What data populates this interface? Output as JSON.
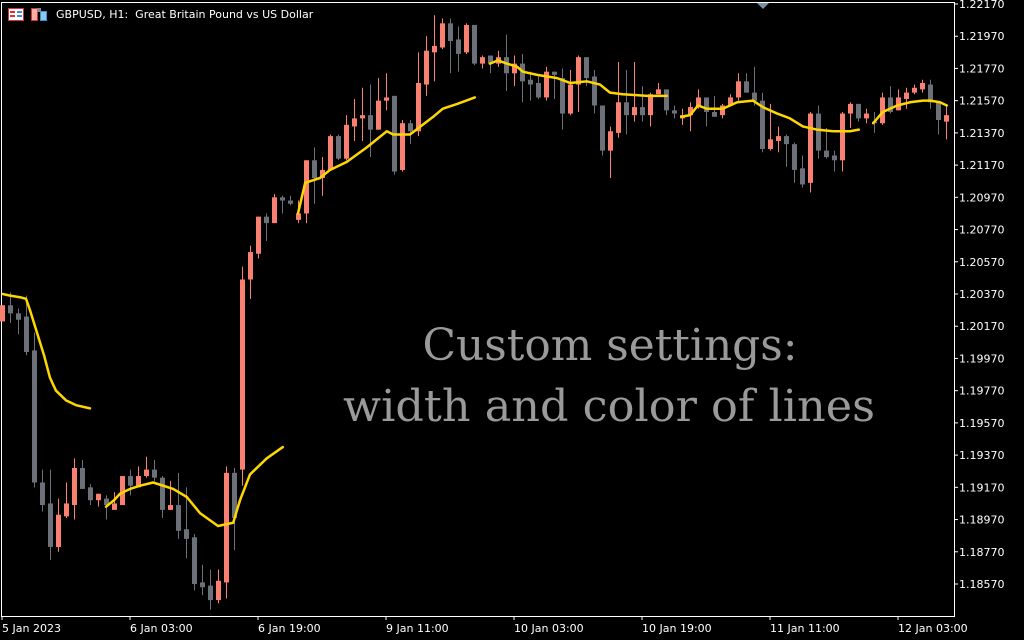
{
  "header": {
    "title": "GBPUSD, H1:  Great Britain Pound vs US Dollar",
    "icons": [
      "chart-list-icon",
      "one-click-trading-icon"
    ]
  },
  "overlay_text": {
    "line1": "Custom settings:",
    "line2": "width and color of lines",
    "color": "#9a9a9a"
  },
  "colors": {
    "background": "#000000",
    "bull": "#fa8072",
    "bear": "#6b7079",
    "ma_line": "#ffd700",
    "axis": "#ffffff",
    "marker": "#7a90a3"
  },
  "chart_data": {
    "type": "candlestick",
    "symbol": "GBPUSD",
    "timeframe": "H1",
    "ylim": [
      1.1845,
      1.2217
    ],
    "y_ticks": [
      "1.22170",
      "1.21970",
      "1.21770",
      "1.21570",
      "1.21370",
      "1.21170",
      "1.20970",
      "1.20770",
      "1.20570",
      "1.20370",
      "1.20170",
      "1.19970",
      "1.19770",
      "1.19570",
      "1.19370",
      "1.19170",
      "1.18970",
      "1.18770",
      "1.18570"
    ],
    "x_ticks": [
      {
        "bar": 0,
        "label": "5 Jan 2023"
      },
      {
        "bar": 16,
        "label": "6 Jan 03:00"
      },
      {
        "bar": 32,
        "label": "6 Jan 19:00"
      },
      {
        "bar": 48,
        "label": "9 Jan 11:00"
      },
      {
        "bar": 64,
        "label": "10 Jan 03:00"
      },
      {
        "bar": 80,
        "label": "10 Jan 19:00"
      },
      {
        "bar": 96,
        "label": "11 Jan 11:00"
      },
      {
        "bar": 112,
        "label": "12 Jan 03:00"
      }
    ],
    "candles_ohlc": [
      [
        1.202,
        1.203,
        1.202,
        1.203
      ],
      [
        1.203,
        1.2038,
        1.2019,
        1.2025
      ],
      [
        1.2025,
        1.2028,
        1.2012,
        1.2021
      ],
      [
        1.2023,
        1.2036,
        1.1999,
        1.2001
      ],
      [
        1.2002,
        1.2013,
        1.1917,
        1.192
      ],
      [
        1.192,
        1.1928,
        1.1902,
        1.1906
      ],
      [
        1.1907,
        1.1928,
        1.1872,
        1.188
      ],
      [
        1.188,
        1.191,
        1.1877,
        1.19
      ],
      [
        1.1899,
        1.192,
        1.1898,
        1.1907
      ],
      [
        1.1906,
        1.1935,
        1.1897,
        1.1929
      ],
      [
        1.1929,
        1.1934,
        1.1916,
        1.1916
      ],
      [
        1.1917,
        1.1919,
        1.1906,
        1.1909
      ],
      [
        1.1909,
        1.1913,
        1.1905,
        1.1913
      ],
      [
        1.191,
        1.1912,
        1.1897,
        1.1906
      ],
      [
        1.1903,
        1.1914,
        1.1903,
        1.1907
      ],
      [
        1.1906,
        1.1924,
        1.1906,
        1.1924
      ],
      [
        1.1924,
        1.1928,
        1.1912,
        1.1918
      ],
      [
        1.1917,
        1.193,
        1.1917,
        1.1924
      ],
      [
        1.1924,
        1.1936,
        1.1923,
        1.1928
      ],
      [
        1.1928,
        1.1934,
        1.1921,
        1.1923
      ],
      [
        1.1923,
        1.1924,
        1.1898,
        1.1903
      ],
      [
        1.1903,
        1.1921,
        1.1903,
        1.1906
      ],
      [
        1.1906,
        1.1926,
        1.1885,
        1.189
      ],
      [
        1.1891,
        1.1917,
        1.1873,
        1.1885
      ],
      [
        1.1886,
        1.1888,
        1.1853,
        1.1857
      ],
      [
        1.1858,
        1.1869,
        1.185,
        1.1855
      ],
      [
        1.1856,
        1.1866,
        1.1841,
        1.1847
      ],
      [
        1.1847,
        1.1866,
        1.1845,
        1.1859
      ],
      [
        1.1858,
        1.193,
        1.1848,
        1.1926
      ],
      [
        1.1926,
        1.1929,
        1.1878,
        1.1898
      ],
      [
        1.1928,
        1.2054,
        1.1918,
        1.2046
      ],
      [
        1.2046,
        1.2067,
        1.2034,
        1.2063
      ],
      [
        1.2062,
        1.2085,
        1.2059,
        1.2085
      ],
      [
        1.2085,
        1.2087,
        1.207,
        1.2081
      ],
      [
        1.2081,
        1.2099,
        1.2081,
        1.2097
      ],
      [
        1.2097,
        1.2098,
        1.2087,
        1.2095
      ],
      [
        1.2095,
        1.2098,
        1.2092,
        1.2093
      ],
      [
        1.2083,
        1.2095,
        1.2081,
        1.2087
      ],
      [
        1.2087,
        1.212,
        1.2081,
        1.212
      ],
      [
        1.212,
        1.2128,
        1.2093,
        1.2109
      ],
      [
        1.2109,
        1.2122,
        1.2098,
        1.2114
      ],
      [
        1.2114,
        1.2136,
        1.2114,
        1.2135
      ],
      [
        1.2135,
        1.2136,
        1.212,
        1.2121
      ],
      [
        1.2121,
        1.2148,
        1.212,
        1.2142
      ],
      [
        1.2141,
        1.2158,
        1.2132,
        1.2146
      ],
      [
        1.2146,
        1.2165,
        1.2132,
        1.2148
      ],
      [
        1.2148,
        1.2167,
        1.2122,
        1.2139
      ],
      [
        1.2139,
        1.2171,
        1.2139,
        1.2157
      ],
      [
        1.2157,
        1.2174,
        1.2151,
        1.2159
      ],
      [
        1.216,
        1.216,
        1.2111,
        1.2113
      ],
      [
        1.2114,
        1.2145,
        1.2113,
        1.2143
      ],
      [
        1.2143,
        1.2145,
        1.213,
        1.2138
      ],
      [
        1.2138,
        1.2187,
        1.2135,
        1.2168
      ],
      [
        1.2167,
        1.2197,
        1.216,
        1.2188
      ],
      [
        1.2187,
        1.221,
        1.2169,
        1.2191
      ],
      [
        1.219,
        1.2208,
        1.2189,
        1.2205
      ],
      [
        1.2205,
        1.2208,
        1.2174,
        1.2194
      ],
      [
        1.2195,
        1.2203,
        1.2175,
        1.2186
      ],
      [
        1.2187,
        1.2205,
        1.2186,
        1.2204
      ],
      [
        1.2204,
        1.2204,
        1.2179,
        1.218
      ],
      [
        1.218,
        1.2185,
        1.2177,
        1.2184
      ],
      [
        1.2185,
        1.2185,
        1.2174,
        1.218
      ],
      [
        1.218,
        1.2188,
        1.2178,
        1.2184
      ],
      [
        1.2184,
        1.2198,
        1.2163,
        1.2174
      ],
      [
        1.2174,
        1.2185,
        1.2166,
        1.218
      ],
      [
        1.218,
        1.2186,
        1.2156,
        1.2169
      ],
      [
        1.217,
        1.2175,
        1.2157,
        1.2167
      ],
      [
        1.2168,
        1.2172,
        1.2158,
        1.2159
      ],
      [
        1.2159,
        1.2178,
        1.2157,
        1.2175
      ],
      [
        1.2175,
        1.2175,
        1.2158,
        1.2173
      ],
      [
        1.2171,
        1.2177,
        1.2139,
        1.2149
      ],
      [
        1.2149,
        1.2176,
        1.2148,
        1.2167
      ],
      [
        1.2167,
        1.2185,
        1.215,
        1.2184
      ],
      [
        1.2184,
        1.2184,
        1.2166,
        1.2171
      ],
      [
        1.2172,
        1.2176,
        1.2149,
        1.2154
      ],
      [
        1.2154,
        1.2154,
        1.2123,
        1.2126
      ],
      [
        1.2126,
        1.2141,
        1.2109,
        1.2138
      ],
      [
        1.2137,
        1.2181,
        1.2134,
        1.2156
      ],
      [
        1.2156,
        1.2176,
        1.2136,
        1.2148
      ],
      [
        1.2148,
        1.2181,
        1.2144,
        1.2153
      ],
      [
        1.2153,
        1.2166,
        1.2144,
        1.2148
      ],
      [
        1.2148,
        1.2162,
        1.2141,
        1.2161
      ],
      [
        1.2161,
        1.2168,
        1.2161,
        1.2164
      ],
      [
        1.2164,
        1.2164,
        1.2148,
        1.2151
      ],
      [
        1.2151,
        1.2154,
        1.2146,
        1.2149
      ],
      [
        1.2146,
        1.2152,
        1.2142,
        1.2148
      ],
      [
        1.2148,
        1.2156,
        1.2138,
        1.2153
      ],
      [
        1.2153,
        1.2164,
        1.2152,
        1.2159
      ],
      [
        1.2159,
        1.2159,
        1.2141,
        1.215
      ],
      [
        1.215,
        1.216,
        1.2147,
        1.2147
      ],
      [
        1.2148,
        1.2155,
        1.2146,
        1.2154
      ],
      [
        1.2154,
        1.2161,
        1.2154,
        1.2159
      ],
      [
        1.2159,
        1.2174,
        1.2157,
        1.2169
      ],
      [
        1.2169,
        1.2174,
        1.2162,
        1.2162
      ],
      [
        1.2162,
        1.2178,
        1.2154,
        1.2157
      ],
      [
        1.2157,
        1.2162,
        1.2125,
        1.2127
      ],
      [
        1.2127,
        1.2155,
        1.2126,
        1.2133
      ],
      [
        1.2132,
        1.2141,
        1.2125,
        1.2135
      ],
      [
        1.2135,
        1.2136,
        1.2116,
        1.213
      ],
      [
        1.213,
        1.2131,
        1.2106,
        1.2114
      ],
      [
        1.2115,
        1.2123,
        1.2103,
        1.2105
      ],
      [
        1.2106,
        1.215,
        1.21,
        1.2149
      ],
      [
        1.2149,
        1.2154,
        1.2121,
        1.2126
      ],
      [
        1.2126,
        1.214,
        1.2121,
        1.2122
      ],
      [
        1.2123,
        1.2126,
        1.2113,
        1.212
      ],
      [
        1.212,
        1.215,
        1.2113,
        1.2149
      ],
      [
        1.2149,
        1.2156,
        1.214,
        1.2155
      ],
      [
        1.2155,
        1.2155,
        1.2144,
        1.2146
      ],
      [
        1.2146,
        1.2152,
        1.2143,
        1.2149
      ],
      [
        1.2144,
        1.215,
        1.2137,
        1.2143
      ],
      [
        1.2143,
        1.2162,
        1.2142,
        1.2159
      ],
      [
        1.2159,
        1.2166,
        1.2149,
        1.215
      ],
      [
        1.2151,
        1.2164,
        1.2151,
        1.2159
      ],
      [
        1.2158,
        1.2165,
        1.2152,
        1.2162
      ],
      [
        1.2162,
        1.2167,
        1.2161,
        1.2165
      ],
      [
        1.2164,
        1.217,
        1.2162,
        1.2168
      ],
      [
        1.2167,
        1.217,
        1.2152,
        1.2156
      ],
      [
        1.2156,
        1.2156,
        1.2136,
        1.2145
      ],
      [
        1.2144,
        1.2154,
        1.2133,
        1.2148
      ]
    ],
    "ma_segments": [
      [
        [
          0.1,
          1.2037
        ],
        [
          1,
          1.2036
        ],
        [
          2.25,
          1.2035
        ],
        [
          3,
          1.2034
        ],
        [
          3.5,
          1.2027
        ],
        [
          4.25,
          1.2015
        ],
        [
          5.25,
          1.1999
        ],
        [
          6,
          1.1985
        ],
        [
          6.75,
          1.1977
        ],
        [
          8,
          1.1971
        ],
        [
          9.25,
          1.1968
        ],
        [
          11,
          1.1966
        ]
      ],
      [
        [
          13,
          1.1905
        ],
        [
          14,
          1.1909
        ],
        [
          14.75,
          1.1913
        ],
        [
          16,
          1.1916
        ],
        [
          17.25,
          1.1918
        ],
        [
          18.9,
          1.192
        ],
        [
          21.4,
          1.1916
        ],
        [
          23.1,
          1.1911
        ],
        [
          24.75,
          1.1901
        ],
        [
          27,
          1.1893
        ],
        [
          28.9,
          1.1895
        ],
        [
          29.75,
          1.1909
        ],
        [
          31,
          1.1925
        ],
        [
          33.1,
          1.1935
        ],
        [
          35.1,
          1.1942
        ]
      ],
      [
        [
          37,
          1.2087
        ],
        [
          37.9,
          1.2106
        ],
        [
          39.75,
          1.2109
        ],
        [
          41,
          1.2114
        ],
        [
          43.1,
          1.2119
        ],
        [
          45.6,
          1.2128
        ],
        [
          48.1,
          1.2138
        ],
        [
          48.9,
          1.2136
        ],
        [
          51,
          1.2136
        ],
        [
          53.9,
          1.2147
        ],
        [
          55.1,
          1.2152
        ],
        [
          56.9,
          1.2155
        ],
        [
          59.1,
          1.2159
        ]
      ],
      [
        [
          61,
          1.218
        ],
        [
          62,
          1.2182
        ],
        [
          63.1,
          1.218
        ],
        [
          64.4,
          1.2178
        ],
        [
          65.1,
          1.2175
        ],
        [
          66.9,
          1.2173
        ],
        [
          69.4,
          1.2171
        ],
        [
          71,
          1.2168
        ],
        [
          73.1,
          1.2169
        ],
        [
          74.75,
          1.2167
        ],
        [
          76,
          1.2162
        ],
        [
          77.6,
          1.2161
        ],
        [
          80.6,
          1.216
        ],
        [
          83.1,
          1.216
        ]
      ],
      [
        [
          84.9,
          1.2147
        ],
        [
          86,
          1.2148
        ],
        [
          87,
          1.2154
        ],
        [
          88.1,
          1.2152
        ],
        [
          90.1,
          1.2152
        ],
        [
          91.9,
          1.2156
        ],
        [
          93.9,
          1.2157
        ],
        [
          95.1,
          1.2153
        ],
        [
          96.9,
          1.2149
        ],
        [
          98.5,
          1.2146
        ],
        [
          100.1,
          1.2141
        ],
        [
          101.9,
          1.2139
        ],
        [
          103.9,
          1.2138
        ],
        [
          106,
          1.2138
        ],
        [
          107.1,
          1.2139
        ]
      ],
      [
        [
          108.9,
          1.2143
        ],
        [
          110.1,
          1.215
        ],
        [
          111.9,
          1.2154
        ],
        [
          113.5,
          1.2156
        ],
        [
          115.1,
          1.2157
        ],
        [
          116,
          1.2157
        ],
        [
          117.25,
          1.2156
        ],
        [
          118.1,
          1.2154
        ]
      ]
    ],
    "grid": false
  }
}
